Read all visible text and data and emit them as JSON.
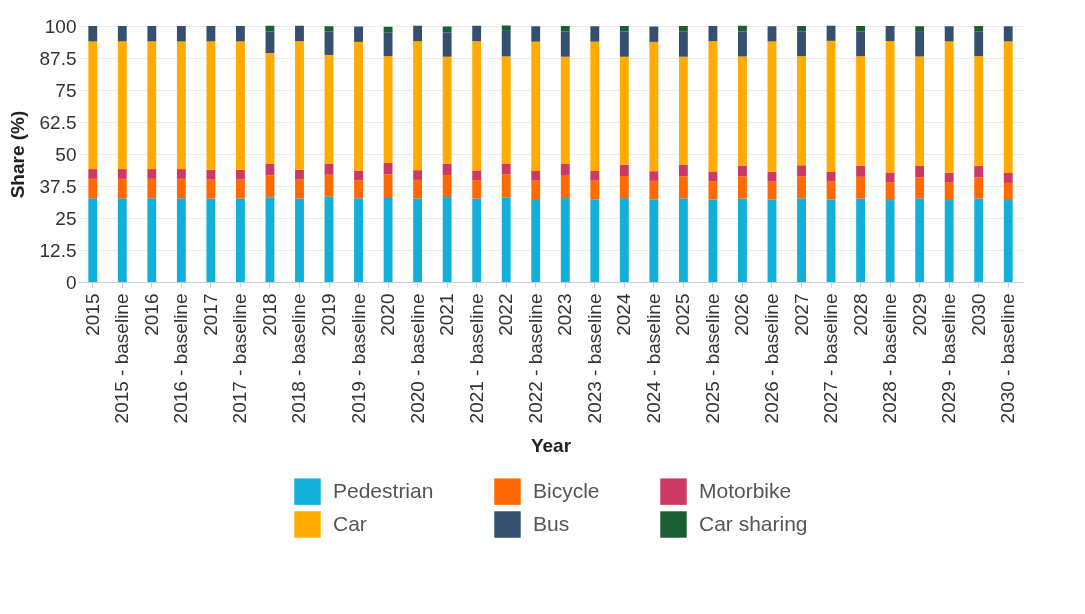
{
  "chart_data": {
    "type": "bar",
    "stacked": true,
    "xlabel": "Year",
    "ylabel": "Share (%)",
    "categories": [
      "2015",
      "2015 - baseline",
      "2016",
      "2016 - baseline",
      "2017",
      "2017 - baseline",
      "2018",
      "2018 - baseline",
      "2019",
      "2019 - baseline",
      "2020",
      "2020 - baseline",
      "2021",
      "2021 - baseline",
      "2022",
      "2022 - baseline",
      "2023",
      "2023 - baseline",
      "2024",
      "2024 - baseline",
      "2025",
      "2025 - baseline",
      "2026",
      "2026 - baseline",
      "2027",
      "2027 - baseline",
      "2028",
      "2028 - baseline",
      "2029",
      "2029 - baseline",
      "2030",
      "2030 - baseline"
    ],
    "series": [
      {
        "name": "Pedestrian",
        "color": "#12b0d8",
        "values": [
          32.7,
          32.7,
          32.7,
          32.7,
          32.6,
          32.6,
          33.1,
          32.6,
          33.3,
          32.7,
          33.2,
          32.6,
          33.2,
          32.6,
          33.1,
          32.4,
          32.8,
          32.3,
          32.8,
          32.3,
          32.7,
          32.2,
          32.6,
          32.2,
          32.7,
          32.2,
          32.6,
          32.0,
          32.6,
          32.0,
          32.6,
          32.0
        ]
      },
      {
        "name": "Bicycle",
        "color": "#ff6a00",
        "values": [
          7.6,
          7.6,
          7.6,
          7.6,
          7.4,
          7.4,
          8.5,
          7.4,
          8.6,
          7.0,
          8.9,
          7.3,
          8.6,
          7.2,
          8.9,
          7.2,
          8.7,
          7.3,
          8.6,
          7.2,
          8.6,
          7.2,
          8.6,
          7.0,
          8.5,
          7.0,
          8.5,
          7.0,
          8.3,
          6.8,
          8.2,
          6.7
        ]
      },
      {
        "name": "Motorbike",
        "color": "#cc3a63",
        "values": [
          3.8,
          3.8,
          3.8,
          3.8,
          3.8,
          3.8,
          4.6,
          3.8,
          4.4,
          3.8,
          4.4,
          3.8,
          4.4,
          3.8,
          4.3,
          3.8,
          4.6,
          3.8,
          4.4,
          3.8,
          4.4,
          3.8,
          4.3,
          3.9,
          4.4,
          3.8,
          4.4,
          3.8,
          4.4,
          3.9,
          4.6,
          3.9
        ]
      },
      {
        "name": "Car",
        "color": "#ffab00",
        "values": [
          49.9,
          49.9,
          49.9,
          49.9,
          50.2,
          50.2,
          43.2,
          50.3,
          42.4,
          50.3,
          41.7,
          50.4,
          41.8,
          50.5,
          41.8,
          50.5,
          41.9,
          50.5,
          42.2,
          50.5,
          42.3,
          50.9,
          42.6,
          50.9,
          42.6,
          51.2,
          42.7,
          51.3,
          42.8,
          51.3,
          42.8,
          51.4
        ]
      },
      {
        "name": "Bus",
        "color": "#35506f",
        "values": [
          6.0,
          6.0,
          6.0,
          6.0,
          6.0,
          6.0,
          8.5,
          6.0,
          9.1,
          6.0,
          9.2,
          6.0,
          9.5,
          6.0,
          10.0,
          6.0,
          9.8,
          6.0,
          9.8,
          6.0,
          9.8,
          5.9,
          9.8,
          5.9,
          9.6,
          5.9,
          9.6,
          5.9,
          9.6,
          5.9,
          9.6,
          5.9
        ]
      },
      {
        "name": "Car sharing",
        "color": "#1b5e32",
        "values": [
          0,
          0,
          0,
          0,
          0,
          0,
          2.2,
          0,
          2.1,
          0,
          2.3,
          0,
          2.3,
          0,
          2.1,
          0,
          2.2,
          0,
          2.2,
          0,
          2.2,
          0,
          2.2,
          0,
          2.2,
          0,
          2.2,
          0,
          2.2,
          0,
          2.2,
          0
        ]
      }
    ],
    "ylim": [
      0,
      100
    ],
    "yticks": [
      0,
      12.5,
      25,
      37.5,
      50,
      62.5,
      75,
      87.5,
      100
    ],
    "grid": true,
    "legend": "bottom"
  }
}
